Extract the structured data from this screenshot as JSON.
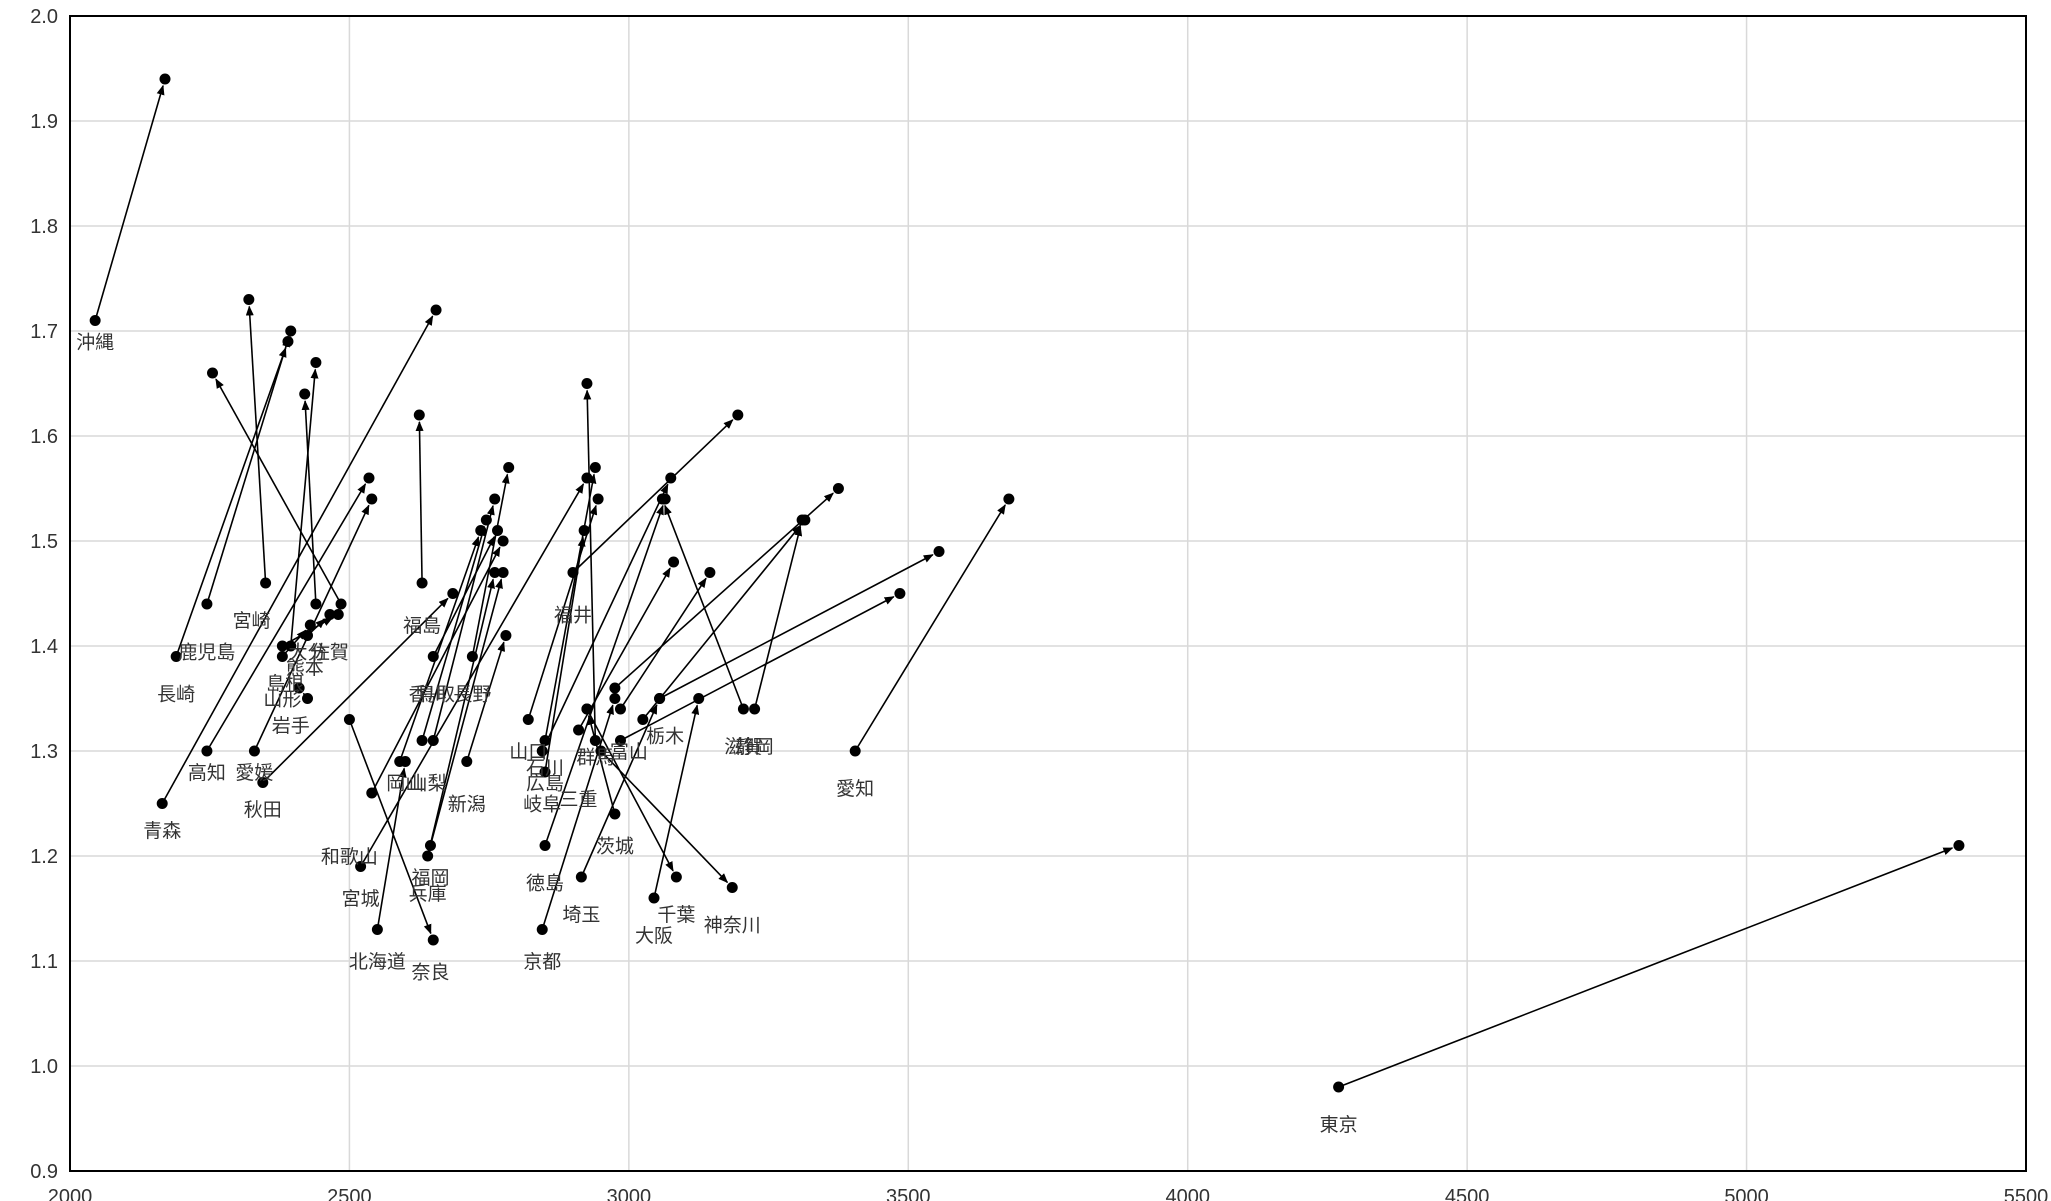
{
  "chart_data": {
    "type": "scatter",
    "title": "",
    "xlabel": "",
    "ylabel": "",
    "xlim": [
      2000,
      5500
    ],
    "ylim": [
      0.9,
      2.0
    ],
    "xticks": [
      "2000",
      "2500",
      "3000",
      "3500",
      "4000",
      "4500",
      "5000",
      "5500"
    ],
    "yticks": [
      "0.9",
      "1.0",
      "1.1",
      "1.2",
      "1.3",
      "1.4",
      "1.5",
      "1.6",
      "1.7",
      "1.8",
      "1.9",
      "2.0"
    ],
    "grid": true,
    "legend": "none",
    "point_color": "#000000",
    "arrows": [
      {
        "label": "沖縄",
        "from": [
          2045,
          1.71
        ],
        "to": [
          2170,
          1.94
        ]
      },
      {
        "label": "長崎",
        "from": [
          2190,
          1.39
        ],
        "to": [
          2390,
          1.69
        ]
      },
      {
        "label": "鹿児島",
        "from": [
          2245,
          1.44
        ],
        "to": [
          2395,
          1.7
        ]
      },
      {
        "label": "宮崎",
        "from": [
          2350,
          1.46
        ],
        "to": [
          2320,
          1.73
        ]
      },
      {
        "label": "佐賀",
        "from": [
          2485,
          1.44
        ],
        "to": [
          2255,
          1.66
        ]
      },
      {
        "label": "熊本",
        "from": [
          2440,
          1.44
        ],
        "to": [
          2420,
          1.64
        ]
      },
      {
        "label": "島根",
        "from": [
          2395,
          1.4
        ],
        "to": [
          2440,
          1.67
        ]
      },
      {
        "label": "大分",
        "from": [
          2425,
          1.41
        ],
        "to": [
          2465,
          1.43
        ]
      },
      {
        "label": "山形",
        "from": [
          2380,
          1.39
        ],
        "to": [
          2430,
          1.42
        ]
      },
      {
        "label": "岩手",
        "from": [
          2425,
          1.35
        ],
        "to": [
          2410,
          1.36
        ]
      },
      {
        "label": "高知",
        "from": [
          2245,
          1.3
        ],
        "to": [
          2535,
          1.56
        ]
      },
      {
        "label": "青森",
        "from": [
          2165,
          1.25
        ],
        "to": [
          2655,
          1.72
        ]
      },
      {
        "label": "愛媛",
        "from": [
          2330,
          1.3
        ],
        "to": [
          2540,
          1.54
        ]
      },
      {
        "label": "秋田",
        "from": [
          2345,
          1.27
        ],
        "to": [
          2685,
          1.45
        ]
      },
      {
        "label": "福島",
        "from": [
          2630,
          1.46
        ],
        "to": [
          2625,
          1.62
        ]
      },
      {
        "label": "香川",
        "from": [
          2630,
          1.31
        ],
        "to": [
          2745,
          1.52
        ]
      },
      {
        "label": "鳥取",
        "from": [
          2650,
          1.31
        ],
        "to": [
          2760,
          1.54
        ]
      },
      {
        "label": "長野",
        "from": [
          2720,
          1.39
        ],
        "to": [
          2785,
          1.57
        ]
      },
      {
        "label": "山梨",
        "from": [
          2710,
          1.29
        ],
        "to": [
          2780,
          1.41
        ]
      },
      {
        "label": "新潟",
        "from": [
          2650,
          1.39
        ],
        "to": [
          2765,
          1.51
        ]
      },
      {
        "label": "岡山",
        "from": [
          2590,
          1.29
        ],
        "to": [
          2735,
          1.51
        ]
      },
      {
        "label": "和歌山",
        "from": [
          2500,
          1.33
        ],
        "to": [
          2650,
          1.12
        ]
      },
      {
        "label": "宮城",
        "from": [
          2520,
          1.19
        ],
        "to": [
          2925,
          1.56
        ]
      },
      {
        "label": "福岡",
        "from": [
          2645,
          1.21
        ],
        "to": [
          2775,
          1.47
        ]
      },
      {
        "label": "兵庫",
        "from": [
          2640,
          1.2
        ],
        "to": [
          2760,
          1.47
        ]
      },
      {
        "label": "北海道",
        "from": [
          2550,
          1.13
        ],
        "to": [
          2600,
          1.29
        ]
      },
      {
        "label": "奈良",
        "from": [
          2540,
          1.26
        ],
        "to": [
          2775,
          1.5
        ]
      },
      {
        "label": "福井",
        "from": [
          2900,
          1.47
        ],
        "to": [
          3195,
          1.62
        ]
      },
      {
        "label": "山口",
        "from": [
          2820,
          1.33
        ],
        "to": [
          2945,
          1.54
        ]
      },
      {
        "label": "石川",
        "from": [
          2850,
          1.31
        ],
        "to": [
          2940,
          1.57
        ]
      },
      {
        "label": "広島",
        "from": [
          2850,
          1.28
        ],
        "to": [
          2920,
          1.51
        ]
      },
      {
        "label": "岐阜",
        "from": [
          2845,
          1.3
        ],
        "to": [
          3075,
          1.56
        ]
      },
      {
        "label": "群馬",
        "from": [
          2940,
          1.31
        ],
        "to": [
          2925,
          1.65
        ]
      },
      {
        "label": "三重",
        "from": [
          2910,
          1.32
        ],
        "to": [
          3080,
          1.48
        ]
      },
      {
        "label": "富山",
        "from": [
          2985,
          1.34
        ],
        "to": [
          3145,
          1.47
        ]
      },
      {
        "label": "栃木",
        "from": [
          3025,
          1.33
        ],
        "to": [
          3315,
          1.52
        ]
      },
      {
        "label": "茨城",
        "from": [
          2975,
          1.36
        ],
        "to": [
          3375,
          1.55
        ]
      },
      {
        "label": "徳島",
        "from": [
          2850,
          1.21
        ],
        "to": [
          3065,
          1.54
        ]
      },
      {
        "label": "京都",
        "from": [
          2845,
          1.13
        ],
        "to": [
          2975,
          1.35
        ]
      },
      {
        "label": "埼玉",
        "from": [
          2915,
          1.18
        ],
        "to": [
          3055,
          1.35
        ]
      },
      {
        "label": "千葉",
        "from": [
          3055,
          1.35
        ],
        "to": [
          3555,
          1.49
        ]
      },
      {
        "label": "大阪",
        "from": [
          3045,
          1.16
        ],
        "to": [
          3125,
          1.35
        ]
      },
      {
        "label": "神奈川",
        "from": [
          2985,
          1.31
        ],
        "to": [
          3485,
          1.45
        ]
      },
      {
        "label": "滋賀",
        "from": [
          3205,
          1.34
        ],
        "to": [
          3060,
          1.54
        ]
      },
      {
        "label": "静岡",
        "from": [
          3225,
          1.34
        ],
        "to": [
          3310,
          1.52
        ]
      },
      {
        "label": "愛知",
        "from": [
          3405,
          1.3
        ],
        "to": [
          3680,
          1.54
        ]
      },
      {
        "label": "東京",
        "from": [
          4270,
          0.98
        ],
        "to": [
          5380,
          1.21
        ]
      },
      {
        "label": "",
        "from": [
          2380,
          1.4
        ],
        "to": [
          2480,
          1.43
        ]
      },
      {
        "label": "",
        "from": [
          2975,
          1.24
        ],
        "to": [
          2925,
          1.34
        ]
      },
      {
        "label": "",
        "from": [
          2925,
          1.34
        ],
        "to": [
          3085,
          1.18
        ]
      },
      {
        "label": "",
        "from": [
          2950,
          1.3
        ],
        "to": [
          3185,
          1.17
        ]
      }
    ],
    "labels": [
      {
        "text": "沖縄",
        "x": 2045,
        "y": 1.69
      },
      {
        "text": "鹿児島",
        "x": 2245,
        "y": 1.395
      },
      {
        "text": "長崎",
        "x": 2190,
        "y": 1.355
      },
      {
        "text": "宮崎",
        "x": 2325,
        "y": 1.425
      },
      {
        "text": "佐賀",
        "x": 2465,
        "y": 1.395
      },
      {
        "text": "大分",
        "x": 2425,
        "y": 1.395
      },
      {
        "text": "熊本",
        "x": 2420,
        "y": 1.38
      },
      {
        "text": "島根",
        "x": 2385,
        "y": 1.365
      },
      {
        "text": "山形",
        "x": 2380,
        "y": 1.35
      },
      {
        "text": "岩手",
        "x": 2395,
        "y": 1.325
      },
      {
        "text": "高知",
        "x": 2245,
        "y": 1.28
      },
      {
        "text": "愛媛",
        "x": 2330,
        "y": 1.28
      },
      {
        "text": "秋田",
        "x": 2345,
        "y": 1.245
      },
      {
        "text": "青森",
        "x": 2165,
        "y": 1.225
      },
      {
        "text": "福島",
        "x": 2630,
        "y": 1.42
      },
      {
        "text": "香川",
        "x": 2640,
        "y": 1.355
      },
      {
        "text": "鳥取",
        "x": 2655,
        "y": 1.355
      },
      {
        "text": "長野",
        "x": 2720,
        "y": 1.355
      },
      {
        "text": "山口",
        "x": 2820,
        "y": 1.3
      },
      {
        "text": "石川",
        "x": 2850,
        "y": 1.285
      },
      {
        "text": "広島",
        "x": 2850,
        "y": 1.27
      },
      {
        "text": "岐阜",
        "x": 2845,
        "y": 1.25
      },
      {
        "text": "群馬",
        "x": 2940,
        "y": 1.295
      },
      {
        "text": "三重",
        "x": 2910,
        "y": 1.255
      },
      {
        "text": "富山",
        "x": 3000,
        "y": 1.3
      },
      {
        "text": "栃木",
        "x": 3065,
        "y": 1.315
      },
      {
        "text": "茨城",
        "x": 2975,
        "y": 1.21
      },
      {
        "text": "福井",
        "x": 2900,
        "y": 1.43
      },
      {
        "text": "岡山",
        "x": 2600,
        "y": 1.27
      },
      {
        "text": "山梨",
        "x": 2640,
        "y": 1.27
      },
      {
        "text": "新潟",
        "x": 2710,
        "y": 1.25
      },
      {
        "text": "和歌山",
        "x": 2500,
        "y": 1.2
      },
      {
        "text": "宮城",
        "x": 2520,
        "y": 1.16
      },
      {
        "text": "福岡",
        "x": 2645,
        "y": 1.18
      },
      {
        "text": "兵庫",
        "x": 2640,
        "y": 1.165
      },
      {
        "text": "北海道",
        "x": 2550,
        "y": 1.1
      },
      {
        "text": "奈良",
        "x": 2645,
        "y": 1.09
      },
      {
        "text": "徳島",
        "x": 2850,
        "y": 1.175
      },
      {
        "text": "京都",
        "x": 2845,
        "y": 1.1
      },
      {
        "text": "埼玉",
        "x": 2915,
        "y": 1.145
      },
      {
        "text": "千葉",
        "x": 3085,
        "y": 1.145
      },
      {
        "text": "大阪",
        "x": 3045,
        "y": 1.125
      },
      {
        "text": "神奈川",
        "x": 3185,
        "y": 1.135
      },
      {
        "text": "滋賀",
        "x": 3205,
        "y": 1.305
      },
      {
        "text": "静岡",
        "x": 3225,
        "y": 1.305
      },
      {
        "text": "愛知",
        "x": 3405,
        "y": 1.265
      },
      {
        "text": "東京",
        "x": 4270,
        "y": 0.945
      }
    ]
  }
}
